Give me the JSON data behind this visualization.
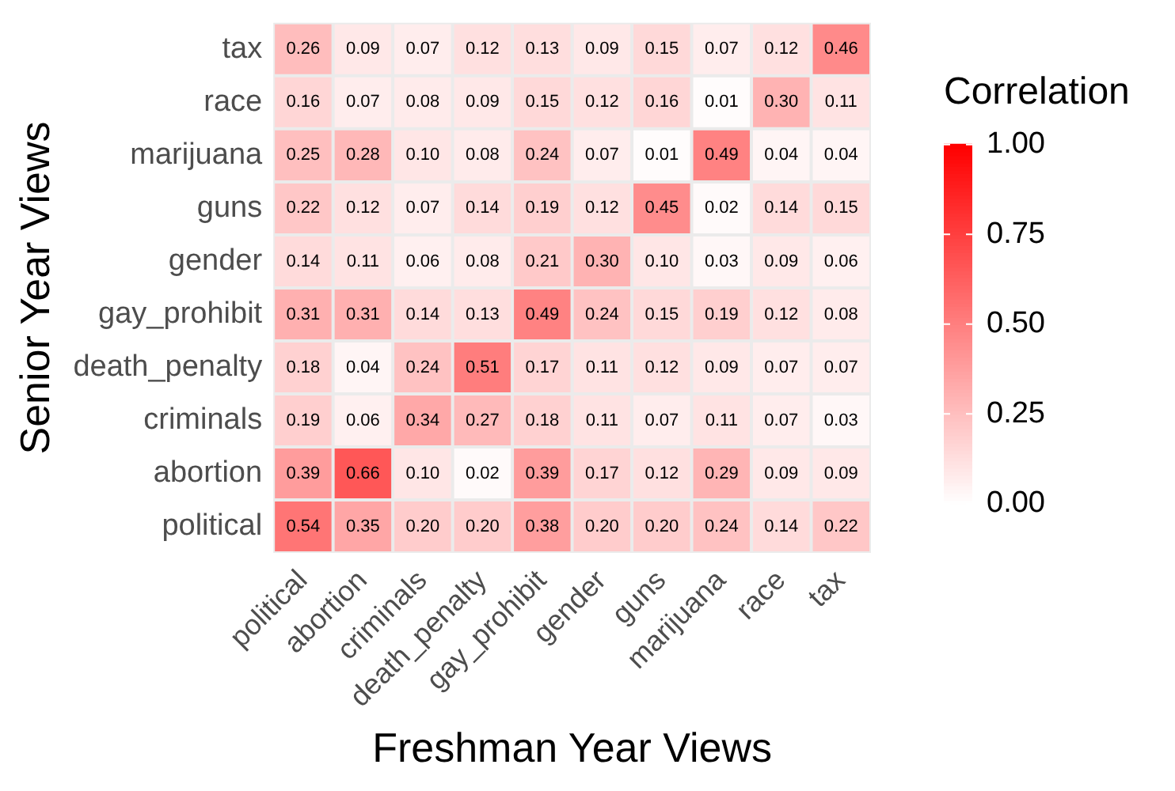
{
  "chart_data": {
    "type": "heatmap",
    "xlabel": "Freshman Year Views",
    "ylabel": "Senior Year Views",
    "clabel": "Correlation",
    "categories": [
      "political",
      "abortion",
      "criminals",
      "death_penalty",
      "gay_prohibit",
      "gender",
      "guns",
      "marijuana",
      "race",
      "tax"
    ],
    "y_categories": [
      "tax",
      "race",
      "marijuana",
      "guns",
      "gender",
      "gay_prohibit",
      "death_penalty",
      "criminals",
      "abortion",
      "political"
    ],
    "cells": [
      [
        0.26,
        0.09,
        0.07,
        0.12,
        0.13,
        0.09,
        0.15,
        0.07,
        0.12,
        0.46
      ],
      [
        0.16,
        0.07,
        0.08,
        0.09,
        0.15,
        0.12,
        0.16,
        0.01,
        0.3,
        0.11
      ],
      [
        0.25,
        0.28,
        0.1,
        0.08,
        0.24,
        0.07,
        0.01,
        0.49,
        0.04,
        0.04
      ],
      [
        0.22,
        0.12,
        0.07,
        0.14,
        0.19,
        0.12,
        0.45,
        0.02,
        0.14,
        0.15
      ],
      [
        0.14,
        0.11,
        0.06,
        0.08,
        0.21,
        0.3,
        0.1,
        0.03,
        0.09,
        0.06
      ],
      [
        0.31,
        0.31,
        0.14,
        0.13,
        0.49,
        0.24,
        0.15,
        0.19,
        0.12,
        0.08
      ],
      [
        0.18,
        0.04,
        0.24,
        0.51,
        0.17,
        0.11,
        0.12,
        0.09,
        0.07,
        0.07
      ],
      [
        0.19,
        0.06,
        0.34,
        0.27,
        0.18,
        0.11,
        0.07,
        0.11,
        0.07,
        0.03
      ],
      [
        0.39,
        0.66,
        0.1,
        0.02,
        0.39,
        0.17,
        0.12,
        0.29,
        0.09,
        0.09
      ],
      [
        0.54,
        0.35,
        0.2,
        0.2,
        0.38,
        0.2,
        0.2,
        0.24,
        0.14,
        0.22
      ]
    ],
    "cell_labels": [
      [
        "0.26",
        "0.09",
        "0.07",
        "0.12",
        "0.13",
        "0.09",
        "0.15",
        "0.07",
        "0.12",
        "0.46"
      ],
      [
        "0.16",
        "0.07",
        "0.08",
        "0.09",
        "0.15",
        "0.12",
        "0.16",
        "0.01",
        "0.30",
        "0.11"
      ],
      [
        "0.25",
        "0.28",
        "0.10",
        "0.08",
        "0.24",
        "0.07",
        "0.01",
        "0.49",
        "0.04",
        "0.04"
      ],
      [
        "0.22",
        "0.12",
        "0.07",
        "0.14",
        "0.19",
        "0.12",
        "0.45",
        "0.02",
        "0.14",
        "0.15"
      ],
      [
        "0.14",
        "0.11",
        "0.06",
        "0.08",
        "0.21",
        "0.30",
        "0.10",
        "0.03",
        "0.09",
        "0.06"
      ],
      [
        "0.31",
        "0.31",
        "0.14",
        "0.13",
        "0.49",
        "0.24",
        "0.15",
        "0.19",
        "0.12",
        "0.08"
      ],
      [
        "0.18",
        "0.04",
        "0.24",
        "0.51",
        "0.17",
        "0.11",
        "0.12",
        "0.09",
        "0.07",
        "0.07"
      ],
      [
        "0.19",
        "0.06",
        "0.34",
        "0.27",
        "0.18",
        "0.11",
        "0.07",
        "0.11",
        "0.07",
        "0.03"
      ],
      [
        "0.39",
        "0.66",
        "0.10",
        "0.02",
        "0.39",
        "0.17",
        "0.12",
        "0.29",
        "0.09",
        "0.09"
      ],
      [
        "0.54",
        "0.35",
        "0.20",
        "0.20",
        "0.38",
        "0.20",
        "0.20",
        "0.24",
        "0.14",
        "0.22"
      ]
    ],
    "colors": [
      "#ffffff",
      "#ff0000"
    ],
    "clim": [
      0,
      1
    ],
    "cticks": [
      {
        "value": 0,
        "label": "0.00"
      },
      {
        "value": 0.25,
        "label": "0.25"
      },
      {
        "value": 0.5,
        "label": "0.50"
      },
      {
        "value": 0.75,
        "label": "0.75"
      },
      {
        "value": 1,
        "label": "1.00"
      }
    ]
  }
}
